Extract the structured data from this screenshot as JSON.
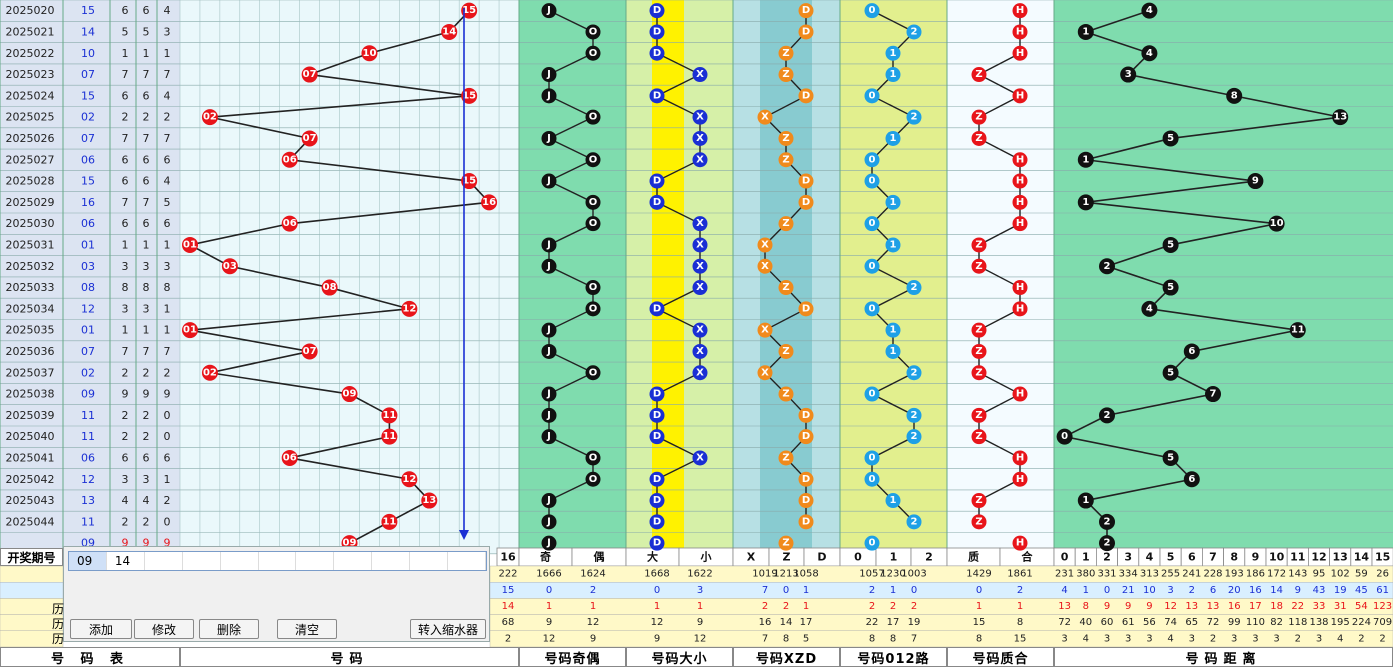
{
  "rows": [
    {
      "p": "2025020",
      "n": "15",
      "a": "6",
      "b": "6",
      "c": "4"
    },
    {
      "p": "2025021",
      "n": "14",
      "a": "5",
      "b": "5",
      "c": "3"
    },
    {
      "p": "2025022",
      "n": "10",
      "a": "1",
      "b": "1",
      "c": "1"
    },
    {
      "p": "2025023",
      "n": "07",
      "a": "7",
      "b": "7",
      "c": "7"
    },
    {
      "p": "2025024",
      "n": "15",
      "a": "6",
      "b": "6",
      "c": "4"
    },
    {
      "p": "2025025",
      "n": "02",
      "a": "2",
      "b": "2",
      "c": "2"
    },
    {
      "p": "2025026",
      "n": "07",
      "a": "7",
      "b": "7",
      "c": "7"
    },
    {
      "p": "2025027",
      "n": "06",
      "a": "6",
      "b": "6",
      "c": "6"
    },
    {
      "p": "2025028",
      "n": "15",
      "a": "6",
      "b": "6",
      "c": "4"
    },
    {
      "p": "2025029",
      "n": "16",
      "a": "7",
      "b": "7",
      "c": "5"
    },
    {
      "p": "2025030",
      "n": "06",
      "a": "6",
      "b": "6",
      "c": "6"
    },
    {
      "p": "2025031",
      "n": "01",
      "a": "1",
      "b": "1",
      "c": "1"
    },
    {
      "p": "2025032",
      "n": "03",
      "a": "3",
      "b": "3",
      "c": "3"
    },
    {
      "p": "2025033",
      "n": "08",
      "a": "8",
      "b": "8",
      "c": "8"
    },
    {
      "p": "2025034",
      "n": "12",
      "a": "3",
      "b": "3",
      "c": "1"
    },
    {
      "p": "2025035",
      "n": "01",
      "a": "1",
      "b": "1",
      "c": "1"
    },
    {
      "p": "2025036",
      "n": "07",
      "a": "7",
      "b": "7",
      "c": "7"
    },
    {
      "p": "2025037",
      "n": "02",
      "a": "2",
      "b": "2",
      "c": "2"
    },
    {
      "p": "2025038",
      "n": "09",
      "a": "9",
      "b": "9",
      "c": "9"
    },
    {
      "p": "2025039",
      "n": "11",
      "a": "2",
      "b": "2",
      "c": "0"
    },
    {
      "p": "2025040",
      "n": "11",
      "a": "2",
      "b": "2",
      "c": "0"
    },
    {
      "p": "2025041",
      "n": "06",
      "a": "6",
      "b": "6",
      "c": "6"
    },
    {
      "p": "2025042",
      "n": "12",
      "a": "3",
      "b": "3",
      "c": "1"
    },
    {
      "p": "2025043",
      "n": "13",
      "a": "4",
      "b": "4",
      "c": "2"
    },
    {
      "p": "2025044",
      "n": "11",
      "a": "2",
      "b": "2",
      "c": "0"
    }
  ],
  "preview": {
    "n": "09",
    "a": "9",
    "b": "9",
    "c": "9"
  },
  "headers": {
    "open_period": "开奖期号",
    "col16": "16",
    "odd": "奇",
    "even": "偶",
    "big": "大",
    "small": "小",
    "xzd": [
      "X",
      "Z",
      "D"
    ],
    "road": [
      "0",
      "1",
      "2"
    ],
    "prime": "质",
    "composite": "合",
    "dist": [
      "0",
      "1",
      "2",
      "3",
      "4",
      "5",
      "6",
      "7",
      "8",
      "9",
      "10",
      "11",
      "12",
      "13",
      "14",
      "15"
    ]
  },
  "stats": {
    "row1": {
      "col16": "222",
      "odd": "1666",
      "even": "1624",
      "big": "1668",
      "small": "1622",
      "x": "1019",
      "z": "1213",
      "d": "1058",
      "r0": "1057",
      "r1": "1230",
      "r2": "1003",
      "prime": "1429",
      "comp": "1861",
      "dist": [
        "231",
        "380",
        "331",
        "334",
        "313",
        "255",
        "241",
        "228",
        "193",
        "186",
        "172",
        "143",
        "95",
        "102",
        "59",
        "26"
      ]
    },
    "row2": {
      "col16": "15",
      "odd": "0",
      "even": "2",
      "big": "0",
      "small": "3",
      "x": "7",
      "z": "0",
      "d": "1",
      "r0": "2",
      "r1": "1",
      "r2": "0",
      "prime": "0",
      "comp": "2",
      "dist": [
        "4",
        "1",
        "0",
        "21",
        "10",
        "3",
        "2",
        "6",
        "20",
        "16",
        "14",
        "9",
        "43",
        "19",
        "45",
        "61"
      ]
    },
    "row3": {
      "col16": "14",
      "odd": "1",
      "even": "1",
      "big": "1",
      "small": "1",
      "x": "2",
      "z": "2",
      "d": "1",
      "r0": "2",
      "r1": "2",
      "r2": "2",
      "prime": "1",
      "comp": "1",
      "dist": [
        "13",
        "8",
        "9",
        "9",
        "9",
        "12",
        "13",
        "13",
        "16",
        "17",
        "18",
        "22",
        "33",
        "31",
        "54",
        "123"
      ]
    },
    "row4": {
      "col16": "68",
      "odd": "9",
      "even": "12",
      "big": "12",
      "small": "9",
      "x": "16",
      "z": "14",
      "d": "17",
      "r0": "22",
      "r1": "17",
      "r2": "19",
      "prime": "15",
      "comp": "8",
      "dist": [
        "72",
        "40",
        "60",
        "61",
        "56",
        "74",
        "65",
        "72",
        "99",
        "110",
        "82",
        "118",
        "138",
        "195",
        "224",
        "709"
      ]
    },
    "row5": {
      "col16": "2",
      "odd": "12",
      "even": "9",
      "big": "9",
      "small": "12",
      "x": "7",
      "z": "8",
      "d": "5",
      "r0": "8",
      "r1": "8",
      "r2": "7",
      "prime": "8",
      "comp": "15",
      "dist": [
        "3",
        "4",
        "3",
        "3",
        "3",
        "4",
        "3",
        "2",
        "3",
        "3",
        "3",
        "2",
        "3",
        "4",
        "2",
        "2"
      ]
    }
  },
  "footer": {
    "t1": "号 码 表",
    "t2": "号码",
    "t3": "号码奇偶",
    "t4": "号码大小",
    "t5": "号码XZD",
    "t6": "号码012路",
    "t7": "号码质合",
    "t8": "号码距离"
  },
  "panel": {
    "cells": [
      "09",
      "14",
      "",
      "",
      "",
      "",
      "",
      "",
      "",
      "",
      ""
    ],
    "buttons": {
      "add": "添加",
      "edit": "修改",
      "del": "删除",
      "clear": "清空",
      "shrink": "转入缩水器"
    }
  },
  "side_labels": [
    "历",
    "历",
    "历"
  ],
  "colors": {
    "red": "#e8141a",
    "black": "#111111",
    "blue": "#1a2fd4",
    "orange": "#f08a1c",
    "sky": "#1ea0e6",
    "light_cyan": "#eaf8fb",
    "green_band": "#7fdcae",
    "yellow_band": "#fff200",
    "teal_band": "#88cbd0",
    "lime_band": "#e2ef8e"
  }
}
